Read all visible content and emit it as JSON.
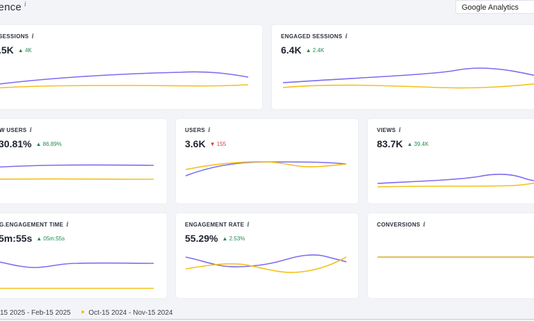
{
  "page": {
    "title": "ience",
    "info": "i"
  },
  "source_select": {
    "value": "Google Analytics"
  },
  "colors": {
    "current": "#7b6cf0",
    "previous": "#f4c01b",
    "up": "#1f8a4c",
    "down": "#d23a3a"
  },
  "cards": {
    "sessions": {
      "label": "SESSIONS",
      "value": ".5K",
      "delta": "▲ 4K"
    },
    "engaged_sessions": {
      "label": "ENGAGED SESSIONS",
      "value": "6.4K",
      "delta": "▲ 2.4K"
    },
    "new_users": {
      "label": "W USERS",
      "value": "30.81%",
      "delta": "▲ 86.89%"
    },
    "users": {
      "label": "USERS",
      "value": "3.6K",
      "delta": "▼ 155"
    },
    "views": {
      "label": "VIEWS",
      "value": "83.7K",
      "delta": "▲ 39.4K"
    },
    "avg_engagement_time": {
      "label": "G.ENGAGEMENT TIME",
      "value": "5m:55s",
      "delta": "▲ 05m:55s"
    },
    "engagement_rate": {
      "label": "ENGAGEMENT RATE",
      "value": "55.29%",
      "delta": "▲ 2.53%"
    },
    "conversions": {
      "label": "CONVERSIONS"
    }
  },
  "legend": {
    "current": "15 2025 - Feb-15 2025",
    "previous": "Oct-15 2024 - Nov-15 2024"
  }
}
